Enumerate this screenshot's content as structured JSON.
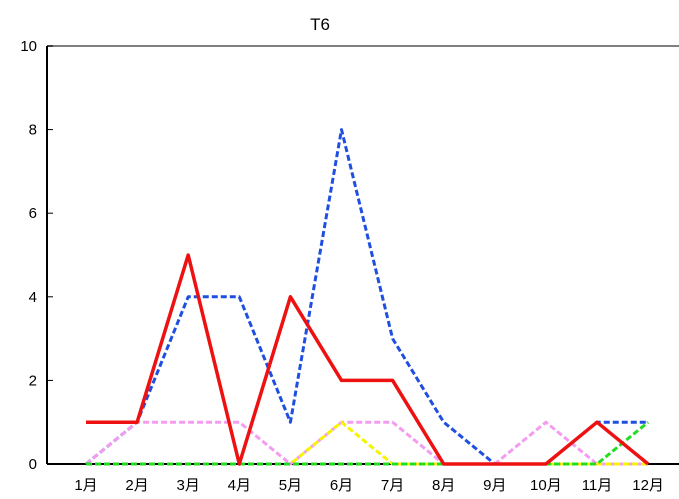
{
  "chart_data": {
    "type": "line",
    "title": "T6",
    "xlabel": "",
    "ylabel": "",
    "categories": [
      "1月",
      "2月",
      "3月",
      "4月",
      "5月",
      "6月",
      "7月",
      "8月",
      "9月",
      "10月",
      "11月",
      "12月"
    ],
    "ylim": [
      0,
      10
    ],
    "yticks": [
      "0",
      "2",
      "4",
      "6",
      "8",
      "10"
    ],
    "grid": false,
    "series": [
      {
        "values": [
          0,
          1,
          4,
          4,
          1,
          8,
          3,
          1,
          0,
          0,
          1,
          1
        ],
        "color": "#1f4fe0",
        "style": "dashed"
      },
      {
        "values": [
          0,
          1,
          1,
          1,
          0,
          1,
          1,
          0,
          0,
          1,
          0,
          0
        ],
        "color": "#f39cf0",
        "style": "dashed"
      },
      {
        "values": [
          0,
          0,
          0,
          0,
          0,
          1,
          0,
          0,
          0,
          0,
          0,
          0
        ],
        "color": "#f5f500",
        "style": "dashed"
      },
      {
        "values": [
          0,
          0,
          0,
          0,
          0,
          0,
          0,
          0,
          0,
          0,
          0,
          1
        ],
        "color": "#22dd22",
        "style": "dashed"
      },
      {
        "values": [
          1,
          1,
          5,
          0,
          4,
          2,
          2,
          0,
          0,
          0,
          1,
          0
        ],
        "color": "#ee1111",
        "style": "solid"
      }
    ]
  }
}
